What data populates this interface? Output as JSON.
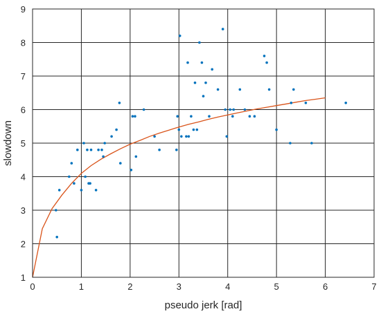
{
  "chart_data": {
    "type": "scatter",
    "xlabel": "pseudo jerk [rad]",
    "ylabel": "slowdown",
    "xlim": [
      0,
      7
    ],
    "ylim": [
      1,
      9
    ],
    "xticks": [
      "0",
      "1",
      "2",
      "3",
      "4",
      "5",
      "6",
      "7"
    ],
    "yticks": [
      "1",
      "2",
      "3",
      "4",
      "5",
      "6",
      "7",
      "8",
      "9"
    ],
    "grid": true,
    "colors": {
      "points": "#0072BD",
      "fit": "#D95319",
      "grid": "#262626"
    },
    "series": [
      {
        "type": "scatter",
        "points": [
          [
            0.48,
            3.0
          ],
          [
            0.5,
            2.2
          ],
          [
            0.55,
            3.6
          ],
          [
            0.75,
            4.0
          ],
          [
            0.8,
            4.4
          ],
          [
            0.85,
            3.8
          ],
          [
            0.92,
            4.8
          ],
          [
            1.0,
            3.6
          ],
          [
            1.05,
            5.0
          ],
          [
            1.08,
            4.0
          ],
          [
            1.12,
            4.8
          ],
          [
            1.15,
            3.8
          ],
          [
            1.18,
            3.8
          ],
          [
            1.2,
            4.8
          ],
          [
            1.3,
            3.6
          ],
          [
            1.35,
            4.8
          ],
          [
            1.42,
            4.8
          ],
          [
            1.45,
            4.6
          ],
          [
            1.48,
            5.0
          ],
          [
            1.62,
            5.2
          ],
          [
            1.72,
            5.4
          ],
          [
            1.78,
            6.2
          ],
          [
            1.8,
            4.4
          ],
          [
            2.02,
            4.2
          ],
          [
            2.05,
            5.8
          ],
          [
            2.1,
            5.8
          ],
          [
            2.12,
            4.6
          ],
          [
            2.28,
            6.0
          ],
          [
            2.5,
            5.2
          ],
          [
            2.6,
            4.8
          ],
          [
            2.95,
            4.8
          ],
          [
            2.97,
            5.8
          ],
          [
            3.0,
            5.4
          ],
          [
            3.02,
            8.2
          ],
          [
            3.05,
            5.2
          ],
          [
            3.15,
            5.2
          ],
          [
            3.18,
            7.4
          ],
          [
            3.2,
            5.2
          ],
          [
            3.25,
            5.8
          ],
          [
            3.3,
            5.4
          ],
          [
            3.33,
            6.8
          ],
          [
            3.37,
            5.4
          ],
          [
            3.42,
            8.0
          ],
          [
            3.47,
            7.4
          ],
          [
            3.5,
            6.4
          ],
          [
            3.55,
            6.8
          ],
          [
            3.62,
            5.8
          ],
          [
            3.68,
            7.2
          ],
          [
            3.8,
            6.6
          ],
          [
            3.9,
            8.4
          ],
          [
            3.95,
            6.0
          ],
          [
            3.98,
            5.2
          ],
          [
            4.05,
            6.0
          ],
          [
            4.1,
            5.8
          ],
          [
            4.12,
            6.0
          ],
          [
            4.25,
            6.6
          ],
          [
            4.35,
            6.0
          ],
          [
            4.45,
            5.8
          ],
          [
            4.55,
            5.8
          ],
          [
            4.75,
            7.6
          ],
          [
            4.8,
            7.4
          ],
          [
            4.85,
            6.6
          ],
          [
            5.0,
            5.4
          ],
          [
            5.28,
            5.0
          ],
          [
            5.3,
            6.2
          ],
          [
            5.35,
            6.6
          ],
          [
            5.6,
            6.2
          ],
          [
            5.72,
            5.0
          ],
          [
            6.42,
            6.2
          ]
        ]
      },
      {
        "type": "line",
        "points": [
          [
            0.0,
            1.0
          ],
          [
            0.2,
            2.45
          ],
          [
            0.4,
            3.05
          ],
          [
            0.6,
            3.45
          ],
          [
            0.8,
            3.8
          ],
          [
            1.0,
            4.1
          ],
          [
            1.2,
            4.33
          ],
          [
            1.4,
            4.52
          ],
          [
            1.6,
            4.68
          ],
          [
            1.8,
            4.83
          ],
          [
            2.0,
            4.97
          ],
          [
            2.2,
            5.08
          ],
          [
            2.4,
            5.2
          ],
          [
            2.6,
            5.3
          ],
          [
            2.8,
            5.39
          ],
          [
            3.0,
            5.48
          ],
          [
            3.2,
            5.56
          ],
          [
            3.4,
            5.63
          ],
          [
            3.6,
            5.71
          ],
          [
            3.8,
            5.78
          ],
          [
            4.0,
            5.84
          ],
          [
            4.2,
            5.9
          ],
          [
            4.4,
            5.96
          ],
          [
            4.6,
            6.02
          ],
          [
            4.8,
            6.07
          ],
          [
            5.0,
            6.12
          ],
          [
            5.2,
            6.17
          ],
          [
            5.4,
            6.22
          ],
          [
            5.6,
            6.27
          ],
          [
            5.8,
            6.31
          ],
          [
            6.0,
            6.35
          ]
        ]
      }
    ]
  }
}
